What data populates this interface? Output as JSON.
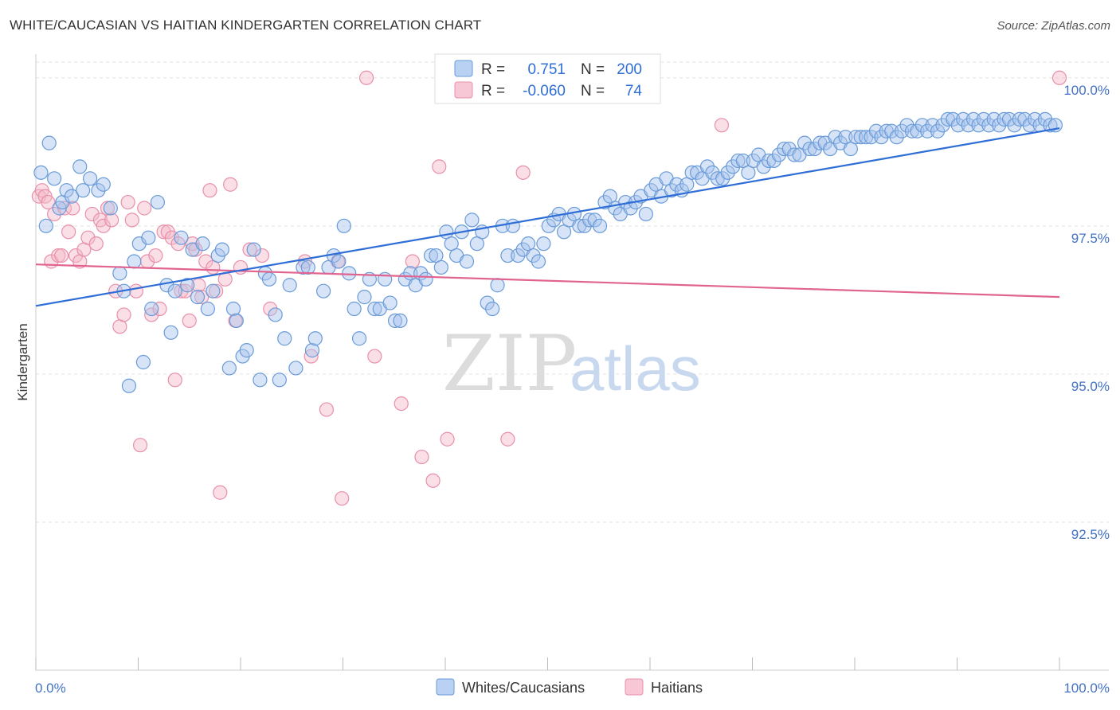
{
  "title": "WHITE/CAUCASIAN VS HAITIAN KINDERGARTEN CORRELATION CHART",
  "source": "Source: ZipAtlas.com",
  "colors": {
    "blue_fill": "#a7c4ee",
    "blue_stroke": "#6a9bd8",
    "blue_line": "#2f6ed6",
    "pink_fill": "#f5b7c8",
    "pink_stroke": "#e890ab",
    "pink_line": "#e0648f",
    "grid": "#e2e2e2",
    "tick_text": "#4472c4"
  },
  "chart_data": {
    "type": "scatter",
    "title": "WHITE/CAUCASIAN VS HAITIAN KINDERGARTEN CORRELATION CHART",
    "xlabel": "",
    "ylabel": "Kindergarten",
    "xlim": [
      0,
      100
    ],
    "ylim": [
      90.0,
      100.4
    ],
    "x_tick_labels": [
      "0.0%",
      "100.0%"
    ],
    "y_ticks": [
      100.0,
      97.5,
      95.0,
      92.5
    ],
    "y_tick_labels": [
      "100.0%",
      "97.5%",
      "95.0%",
      "92.5%"
    ],
    "legend_position": "top-center",
    "series": [
      {
        "name": "Whites/Caucasians",
        "color": "blue",
        "R": "0.751",
        "N": "200",
        "trend": {
          "x": [
            0,
            100
          ],
          "y": [
            96.15,
            99.15
          ]
        },
        "points": [
          [
            0.5,
            98.4
          ],
          [
            1.0,
            97.5
          ],
          [
            1.3,
            98.9
          ],
          [
            1.8,
            98.3
          ],
          [
            2.3,
            97.8
          ],
          [
            2.6,
            97.9
          ],
          [
            3.0,
            98.1
          ],
          [
            3.5,
            98.0
          ],
          [
            4.3,
            98.5
          ],
          [
            4.6,
            98.1
          ],
          [
            5.3,
            98.3
          ],
          [
            6.1,
            98.1
          ],
          [
            6.6,
            98.2
          ],
          [
            7.3,
            97.8
          ],
          [
            8.2,
            96.7
          ],
          [
            8.6,
            96.4
          ],
          [
            9.1,
            94.8
          ],
          [
            9.6,
            96.9
          ],
          [
            10.1,
            97.2
          ],
          [
            10.5,
            95.2
          ],
          [
            11.0,
            97.3
          ],
          [
            11.3,
            96.1
          ],
          [
            11.9,
            97.9
          ],
          [
            12.8,
            96.5
          ],
          [
            13.2,
            95.7
          ],
          [
            13.6,
            96.4
          ],
          [
            14.2,
            97.3
          ],
          [
            14.8,
            96.5
          ],
          [
            15.3,
            97.1
          ],
          [
            15.8,
            96.3
          ],
          [
            16.3,
            97.2
          ],
          [
            16.8,
            96.1
          ],
          [
            17.3,
            96.4
          ],
          [
            17.8,
            97.0
          ],
          [
            18.2,
            97.1
          ],
          [
            18.9,
            95.1
          ],
          [
            19.3,
            96.1
          ],
          [
            19.6,
            95.9
          ],
          [
            20.2,
            95.3
          ],
          [
            20.6,
            95.4
          ],
          [
            21.3,
            97.1
          ],
          [
            21.9,
            94.9
          ],
          [
            22.4,
            96.7
          ],
          [
            22.8,
            96.6
          ],
          [
            23.4,
            96.0
          ],
          [
            23.8,
            94.9
          ],
          [
            24.3,
            95.6
          ],
          [
            24.8,
            96.5
          ],
          [
            25.4,
            95.1
          ],
          [
            26.1,
            96.8
          ],
          [
            26.6,
            96.8
          ],
          [
            27.0,
            95.4
          ],
          [
            27.3,
            95.6
          ],
          [
            28.1,
            96.4
          ],
          [
            28.6,
            96.8
          ],
          [
            29.1,
            97.0
          ],
          [
            29.6,
            96.9
          ],
          [
            30.1,
            97.5
          ],
          [
            30.6,
            96.7
          ],
          [
            31.1,
            96.1
          ],
          [
            31.6,
            95.6
          ],
          [
            32.1,
            96.3
          ],
          [
            32.6,
            96.6
          ],
          [
            33.1,
            96.1
          ],
          [
            33.6,
            96.1
          ],
          [
            34.1,
            96.6
          ],
          [
            34.6,
            96.2
          ],
          [
            35.1,
            95.9
          ],
          [
            35.6,
            95.9
          ],
          [
            36.1,
            96.6
          ],
          [
            36.6,
            96.7
          ],
          [
            37.1,
            96.5
          ],
          [
            37.6,
            96.7
          ],
          [
            38.1,
            96.6
          ],
          [
            38.6,
            97.0
          ],
          [
            39.1,
            97.0
          ],
          [
            39.6,
            96.8
          ],
          [
            40.1,
            97.4
          ],
          [
            40.6,
            97.2
          ],
          [
            41.1,
            97.0
          ],
          [
            41.6,
            97.4
          ],
          [
            42.1,
            96.9
          ],
          [
            42.6,
            97.6
          ],
          [
            43.1,
            97.2
          ],
          [
            43.6,
            97.4
          ],
          [
            44.1,
            96.2
          ],
          [
            44.6,
            96.1
          ],
          [
            45.1,
            96.5
          ],
          [
            45.6,
            97.5
          ],
          [
            46.1,
            97.0
          ],
          [
            46.6,
            97.5
          ],
          [
            47.1,
            97.0
          ],
          [
            47.6,
            97.1
          ],
          [
            48.1,
            97.2
          ],
          [
            48.6,
            97.0
          ],
          [
            49.1,
            96.9
          ],
          [
            49.6,
            97.2
          ],
          [
            50.1,
            97.5
          ],
          [
            50.6,
            97.6
          ],
          [
            51.1,
            97.7
          ],
          [
            51.6,
            97.4
          ],
          [
            52.1,
            97.6
          ],
          [
            52.6,
            97.7
          ],
          [
            53.1,
            97.5
          ],
          [
            53.6,
            97.5
          ],
          [
            54.1,
            97.6
          ],
          [
            54.6,
            97.6
          ],
          [
            55.1,
            97.5
          ],
          [
            55.6,
            97.9
          ],
          [
            56.1,
            98.0
          ],
          [
            56.6,
            97.8
          ],
          [
            57.1,
            97.7
          ],
          [
            57.6,
            97.9
          ],
          [
            58.1,
            97.8
          ],
          [
            58.6,
            97.9
          ],
          [
            59.1,
            98.0
          ],
          [
            59.6,
            97.7
          ],
          [
            60.1,
            98.1
          ],
          [
            60.6,
            98.2
          ],
          [
            61.1,
            98.0
          ],
          [
            61.6,
            98.3
          ],
          [
            62.1,
            98.1
          ],
          [
            62.6,
            98.2
          ],
          [
            63.1,
            98.1
          ],
          [
            63.6,
            98.2
          ],
          [
            64.1,
            98.4
          ],
          [
            64.6,
            98.4
          ],
          [
            65.1,
            98.3
          ],
          [
            65.6,
            98.5
          ],
          [
            66.1,
            98.4
          ],
          [
            66.6,
            98.3
          ],
          [
            67.1,
            98.3
          ],
          [
            67.6,
            98.4
          ],
          [
            68.1,
            98.5
          ],
          [
            68.6,
            98.6
          ],
          [
            69.1,
            98.6
          ],
          [
            69.6,
            98.4
          ],
          [
            70.1,
            98.6
          ],
          [
            70.6,
            98.7
          ],
          [
            71.1,
            98.5
          ],
          [
            71.6,
            98.6
          ],
          [
            72.1,
            98.6
          ],
          [
            72.6,
            98.7
          ],
          [
            73.1,
            98.8
          ],
          [
            73.6,
            98.8
          ],
          [
            74.1,
            98.7
          ],
          [
            74.6,
            98.7
          ],
          [
            75.1,
            98.9
          ],
          [
            75.6,
            98.8
          ],
          [
            76.1,
            98.8
          ],
          [
            76.6,
            98.9
          ],
          [
            77.1,
            98.9
          ],
          [
            77.6,
            98.8
          ],
          [
            78.1,
            99.0
          ],
          [
            78.6,
            98.9
          ],
          [
            79.1,
            99.0
          ],
          [
            79.6,
            98.8
          ],
          [
            80.1,
            99.0
          ],
          [
            80.6,
            99.0
          ],
          [
            81.1,
            99.0
          ],
          [
            81.6,
            99.0
          ],
          [
            82.1,
            99.1
          ],
          [
            82.6,
            99.0
          ],
          [
            83.1,
            99.1
          ],
          [
            83.6,
            99.1
          ],
          [
            84.1,
            99.0
          ],
          [
            84.6,
            99.1
          ],
          [
            85.1,
            99.2
          ],
          [
            85.6,
            99.1
          ],
          [
            86.1,
            99.1
          ],
          [
            86.6,
            99.2
          ],
          [
            87.1,
            99.1
          ],
          [
            87.6,
            99.2
          ],
          [
            88.1,
            99.1
          ],
          [
            88.6,
            99.2
          ],
          [
            89.1,
            99.3
          ],
          [
            89.6,
            99.3
          ],
          [
            90.1,
            99.2
          ],
          [
            90.6,
            99.3
          ],
          [
            91.1,
            99.2
          ],
          [
            91.6,
            99.3
          ],
          [
            92.1,
            99.2
          ],
          [
            92.6,
            99.3
          ],
          [
            93.1,
            99.2
          ],
          [
            93.6,
            99.3
          ],
          [
            94.1,
            99.2
          ],
          [
            94.6,
            99.3
          ],
          [
            95.1,
            99.3
          ],
          [
            95.6,
            99.2
          ],
          [
            96.1,
            99.3
          ],
          [
            96.6,
            99.3
          ],
          [
            97.1,
            99.2
          ],
          [
            97.6,
            99.3
          ],
          [
            98.1,
            99.2
          ],
          [
            98.6,
            99.3
          ],
          [
            99.1,
            99.2
          ],
          [
            99.6,
            99.2
          ]
        ]
      },
      {
        "name": "Haitians",
        "color": "pink",
        "R": "-0.060",
        "N": "74",
        "trend": {
          "x": [
            0,
            100
          ],
          "y": [
            96.85,
            96.3
          ]
        },
        "points": [
          [
            0.3,
            98.0
          ],
          [
            0.6,
            98.1
          ],
          [
            0.9,
            98.0
          ],
          [
            1.2,
            97.9
          ],
          [
            1.5,
            96.9
          ],
          [
            1.8,
            97.7
          ],
          [
            2.2,
            97.0
          ],
          [
            2.5,
            97.0
          ],
          [
            2.8,
            97.8
          ],
          [
            3.2,
            97.4
          ],
          [
            3.6,
            97.8
          ],
          [
            3.9,
            97.0
          ],
          [
            4.3,
            96.9
          ],
          [
            4.7,
            97.1
          ],
          [
            5.1,
            97.3
          ],
          [
            5.5,
            97.7
          ],
          [
            5.9,
            97.2
          ],
          [
            6.3,
            97.6
          ],
          [
            6.6,
            97.5
          ],
          [
            7.0,
            97.8
          ],
          [
            7.4,
            97.6
          ],
          [
            7.8,
            96.4
          ],
          [
            8.2,
            95.8
          ],
          [
            8.6,
            96.0
          ],
          [
            9.0,
            97.9
          ],
          [
            9.4,
            97.6
          ],
          [
            9.8,
            96.4
          ],
          [
            10.2,
            93.8
          ],
          [
            10.6,
            97.8
          ],
          [
            10.9,
            96.9
          ],
          [
            11.3,
            96.0
          ],
          [
            11.7,
            97.0
          ],
          [
            12.1,
            96.1
          ],
          [
            12.5,
            97.4
          ],
          [
            12.9,
            97.4
          ],
          [
            13.3,
            97.3
          ],
          [
            13.6,
            94.9
          ],
          [
            13.9,
            97.2
          ],
          [
            14.2,
            96.4
          ],
          [
            14.6,
            96.4
          ],
          [
            15.0,
            95.9
          ],
          [
            15.3,
            97.2
          ],
          [
            15.6,
            97.1
          ],
          [
            15.9,
            96.5
          ],
          [
            16.2,
            96.3
          ],
          [
            16.6,
            96.9
          ],
          [
            17.0,
            98.1
          ],
          [
            17.3,
            96.8
          ],
          [
            17.6,
            96.4
          ],
          [
            18.0,
            93.0
          ],
          [
            18.5,
            96.6
          ],
          [
            19.0,
            98.2
          ],
          [
            19.5,
            95.9
          ],
          [
            20.0,
            96.8
          ],
          [
            20.9,
            97.1
          ],
          [
            22.1,
            97.0
          ],
          [
            22.9,
            96.1
          ],
          [
            26.3,
            96.9
          ],
          [
            26.9,
            95.3
          ],
          [
            28.4,
            94.4
          ],
          [
            29.5,
            96.9
          ],
          [
            29.9,
            92.9
          ],
          [
            32.3,
            100.0
          ],
          [
            33.1,
            95.3
          ],
          [
            35.7,
            94.5
          ],
          [
            36.8,
            96.9
          ],
          [
            37.7,
            93.6
          ],
          [
            38.8,
            93.2
          ],
          [
            39.4,
            98.5
          ],
          [
            40.2,
            93.9
          ],
          [
            46.1,
            93.9
          ],
          [
            47.6,
            98.4
          ],
          [
            67.0,
            99.2
          ],
          [
            100.0,
            100.0
          ]
        ]
      }
    ]
  },
  "legend": {
    "rows": [
      {
        "r_label": "R =",
        "r_value": "0.751",
        "n_label": "N =",
        "n_value": "200"
      },
      {
        "r_label": "R =",
        "r_value": "-0.060",
        "n_label": "N =",
        "n_value": "74"
      }
    ]
  },
  "watermark": {
    "zip": "ZIP",
    "atlas": "atlas"
  }
}
